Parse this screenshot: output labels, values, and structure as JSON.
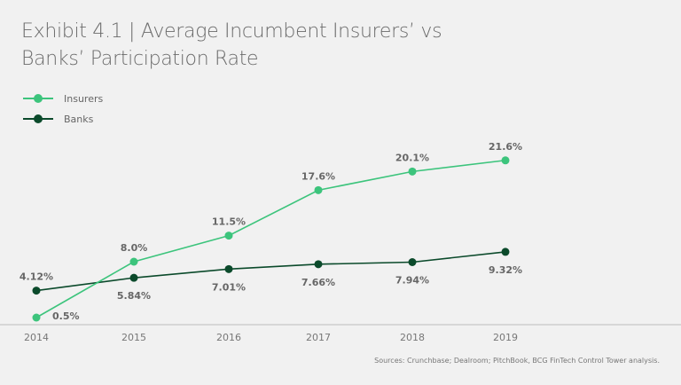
{
  "chart_data": {
    "type": "line",
    "title": "Exhibit 4.1 | Average Incumbent Insurers’ vs Banks’ Participation Rate",
    "categories": [
      "2014",
      "2015",
      "2016",
      "2017",
      "2018",
      "2019"
    ],
    "series": [
      {
        "name": "Insurers",
        "color": "#3cc47c",
        "values": [
          0.5,
          8.0,
          11.5,
          17.6,
          20.1,
          21.6
        ],
        "labels": [
          "0.5%",
          "8.0%",
          "11.5%",
          "17.6%",
          "20.1%",
          "21.6%"
        ],
        "label_pos": [
          "right",
          "above",
          "above",
          "above",
          "above",
          "above"
        ]
      },
      {
        "name": "Banks",
        "color": "#0b4a2b",
        "values": [
          4.12,
          5.84,
          7.01,
          7.66,
          7.94,
          9.32
        ],
        "labels": [
          "4.12%",
          "5.84%",
          "7.01%",
          "7.66%",
          "7.94%",
          "9.32%"
        ],
        "label_pos": [
          "above",
          "below",
          "below",
          "below",
          "below",
          "below"
        ]
      }
    ],
    "ylim": [
      0,
      25
    ],
    "legend": "top-left",
    "grid": false
  },
  "source": "Sources: Crunchbase; Dealroom; PitchBook, BCG FinTech Control Tower analysis."
}
